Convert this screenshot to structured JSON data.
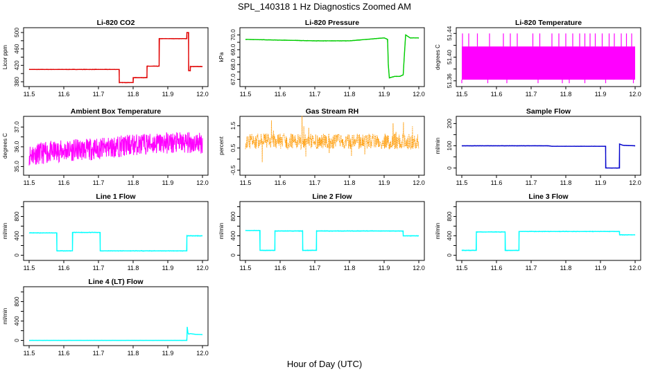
{
  "figure": {
    "title": "SPL_140318  1 Hz Diagnostics Zoomed AM",
    "xlabel": "Hour of Day (UTC)"
  },
  "chart_data": [
    {
      "type": "line",
      "title": "Li-820 CO2",
      "ylabel": "Licor ppm",
      "color": "#e00000",
      "style": "line",
      "xlim": [
        11.5,
        12.0
      ],
      "ylim": [
        375,
        505
      ],
      "xticks": [
        11.5,
        11.6,
        11.7,
        11.8,
        11.9,
        12.0
      ],
      "yticks": [
        380,
        400,
        420,
        440,
        460,
        480,
        500
      ],
      "ytick_labels": [
        "380",
        "",
        "420",
        "",
        "460",
        "",
        "500"
      ],
      "noise": 0.8,
      "x": [
        11.5,
        11.76,
        11.76,
        11.8,
        11.8,
        11.84,
        11.84,
        11.875,
        11.875,
        11.955,
        11.955,
        11.96,
        11.96,
        11.965,
        11.965,
        12.0
      ],
      "y": [
        410,
        410,
        378,
        378,
        390,
        390,
        418,
        418,
        485,
        485,
        500,
        500,
        407,
        407,
        417,
        417
      ]
    },
    {
      "type": "line",
      "title": "Li-820 Pressure",
      "ylabel": "kPa",
      "color": "#00cc00",
      "style": "line",
      "xlim": [
        11.5,
        12.0
      ],
      "ylim": [
        66.7,
        70.3
      ],
      "xticks": [
        11.5,
        11.6,
        11.7,
        11.8,
        11.9,
        12.0
      ],
      "yticks": [
        67.0,
        67.5,
        68.0,
        68.5,
        69.0,
        69.5,
        70.0
      ],
      "ytick_labels": [
        "67.0",
        "",
        "68.0",
        "",
        "69.0",
        "",
        "70.0"
      ],
      "noise": 0.02,
      "x": [
        11.5,
        11.7,
        11.8,
        11.85,
        11.9,
        11.91,
        11.912,
        11.915,
        11.93,
        11.945,
        11.955,
        11.958,
        11.962,
        11.975,
        12.0
      ],
      "y": [
        69.7,
        69.6,
        69.6,
        69.7,
        69.8,
        69.7,
        68.0,
        67.1,
        67.2,
        67.2,
        67.3,
        68.5,
        70.0,
        69.8,
        69.8
      ]
    },
    {
      "type": "line",
      "title": "Li-820 Temperature",
      "ylabel": "degrees C",
      "color": "#ff00ff",
      "style": "band",
      "xlim": [
        11.5,
        12.0
      ],
      "ylim": [
        51.355,
        51.445
      ],
      "xticks": [
        11.5,
        11.6,
        11.7,
        11.8,
        11.9,
        12.0
      ],
      "yticks": [
        51.36,
        51.38,
        51.4,
        51.42,
        51.44
      ],
      "ytick_labels": [
        "51.36",
        "",
        "51.40",
        "",
        "51.44"
      ],
      "band": [
        51.362,
        51.418
      ],
      "x": [
        11.5,
        12.0
      ],
      "y": [
        51.39,
        51.39
      ],
      "spikes_up": [
        11.502,
        11.52,
        11.545,
        11.58,
        11.62,
        11.64,
        11.66,
        11.705,
        11.725,
        11.76,
        11.78,
        11.8,
        11.82,
        11.84,
        11.855,
        11.87,
        11.885,
        11.905,
        11.925,
        11.94,
        11.96,
        11.975,
        11.99
      ],
      "spike_up_to": 51.44,
      "spikes_down": [
        11.5,
        11.575,
        11.63,
        11.72,
        11.79,
        11.81,
        11.855,
        11.915,
        11.995
      ],
      "spike_down_to": 51.356
    },
    {
      "type": "line",
      "title": "Ambient Box Temperature",
      "ylabel": "degrees C",
      "color": "#ff00ff",
      "style": "noisy",
      "xlim": [
        11.5,
        12.0
      ],
      "ylim": [
        34.7,
        37.4
      ],
      "xticks": [
        11.5,
        11.6,
        11.7,
        11.8,
        11.9,
        12.0
      ],
      "yticks": [
        35.0,
        35.5,
        36.0,
        36.5,
        37.0
      ],
      "ytick_labels": [
        "35.0",
        "",
        "36.0",
        "",
        "37.0"
      ],
      "noise": 0.55,
      "seed": 11,
      "x": [
        11.5,
        11.6,
        11.7,
        11.8,
        11.9,
        12.0
      ],
      "y": [
        35.6,
        35.8,
        35.9,
        36.1,
        36.2,
        36.2
      ]
    },
    {
      "type": "line",
      "title": "Gas Stream RH",
      "ylabel": "percent",
      "color": "#ff9900",
      "style": "dots",
      "xlim": [
        11.5,
        12.0
      ],
      "ylim": [
        -0.6,
        1.8
      ],
      "xticks": [
        11.5,
        11.6,
        11.7,
        11.8,
        11.9,
        12.0
      ],
      "yticks": [
        -0.5,
        0.0,
        0.5,
        1.0,
        1.5
      ],
      "ytick_labels": [
        "-0.5",
        "",
        "0.5",
        "",
        "1.5"
      ],
      "noise": 0.35,
      "seed": 23,
      "x": [
        11.5,
        12.0
      ],
      "y": [
        0.8,
        0.8
      ]
    },
    {
      "type": "line",
      "title": "Sample Flow",
      "ylabel": "ml/min",
      "color": "#0000cc",
      "style": "line",
      "xlim": [
        11.5,
        12.0
      ],
      "ylim": [
        -20,
        220
      ],
      "xticks": [
        11.5,
        11.6,
        11.7,
        11.8,
        11.9,
        12.0
      ],
      "yticks": [
        0,
        50,
        100,
        150,
        200
      ],
      "ytick_labels": [
        "0",
        "",
        "100",
        "",
        "200"
      ],
      "noise": 1.0,
      "x": [
        11.5,
        11.75,
        11.76,
        11.915,
        11.915,
        11.955,
        11.955,
        11.965,
        12.0
      ],
      "y": [
        100,
        100,
        98,
        98,
        0,
        0,
        108,
        102,
        100
      ]
    },
    {
      "type": "line",
      "title": "Line 1 Flow",
      "ylabel": "ml/min",
      "color": "#00ffff",
      "style": "line",
      "xlim": [
        11.5,
        12.0
      ],
      "ylim": [
        -50,
        1050
      ],
      "xticks": [
        11.5,
        11.6,
        11.7,
        11.8,
        11.9,
        12.0
      ],
      "yticks": [
        0,
        200,
        400,
        600,
        800,
        1000
      ],
      "ytick_labels": [
        "0",
        "",
        "400",
        "",
        "800",
        ""
      ],
      "noise": 8,
      "x": [
        11.5,
        11.58,
        11.58,
        11.625,
        11.625,
        11.705,
        11.705,
        11.955,
        11.955,
        12.0
      ],
      "y": [
        460,
        460,
        90,
        90,
        470,
        470,
        90,
        90,
        400,
        400
      ]
    },
    {
      "type": "line",
      "title": "Line 2 Flow",
      "ylabel": "ml/min",
      "color": "#00ffff",
      "style": "line",
      "xlim": [
        11.5,
        12.0
      ],
      "ylim": [
        -50,
        1050
      ],
      "xticks": [
        11.5,
        11.6,
        11.7,
        11.8,
        11.9,
        12.0
      ],
      "yticks": [
        0,
        200,
        400,
        600,
        800,
        1000
      ],
      "ytick_labels": [
        "0",
        "",
        "400",
        "",
        "800",
        ""
      ],
      "noise": 8,
      "x": [
        11.5,
        11.542,
        11.542,
        11.585,
        11.585,
        11.665,
        11.665,
        11.705,
        11.705,
        11.955,
        11.955,
        12.0
      ],
      "y": [
        510,
        510,
        100,
        100,
        500,
        500,
        100,
        100,
        500,
        500,
        400,
        400
      ]
    },
    {
      "type": "line",
      "title": "Line 3 Flow",
      "ylabel": "ml/min",
      "color": "#00ffff",
      "style": "line",
      "xlim": [
        11.5,
        12.0
      ],
      "ylim": [
        -50,
        1050
      ],
      "xticks": [
        11.5,
        11.6,
        11.7,
        11.8,
        11.9,
        12.0
      ],
      "yticks": [
        0,
        200,
        400,
        600,
        800,
        1000
      ],
      "ytick_labels": [
        "0",
        "",
        "400",
        "",
        "800",
        ""
      ],
      "noise": 8,
      "x": [
        11.5,
        11.542,
        11.542,
        11.625,
        11.625,
        11.665,
        11.665,
        11.955,
        11.955,
        12.0
      ],
      "y": [
        100,
        100,
        480,
        480,
        100,
        100,
        490,
        490,
        420,
        420
      ]
    },
    {
      "type": "line",
      "title": "Line 4 (LT) Flow",
      "ylabel": "ml/min",
      "color": "#00ffff",
      "style": "line",
      "xlim": [
        11.5,
        12.0
      ],
      "ylim": [
        -50,
        1050
      ],
      "xticks": [
        11.5,
        11.6,
        11.7,
        11.8,
        11.9,
        12.0
      ],
      "yticks": [
        0,
        200,
        400,
        600,
        800,
        1000
      ],
      "ytick_labels": [
        "0",
        "",
        "400",
        "",
        "800",
        ""
      ],
      "noise": 2,
      "x": [
        11.5,
        11.955,
        11.956,
        11.958,
        11.96,
        11.965,
        11.98,
        12.0
      ],
      "y": [
        0,
        0,
        280,
        160,
        130,
        140,
        125,
        120
      ]
    }
  ]
}
